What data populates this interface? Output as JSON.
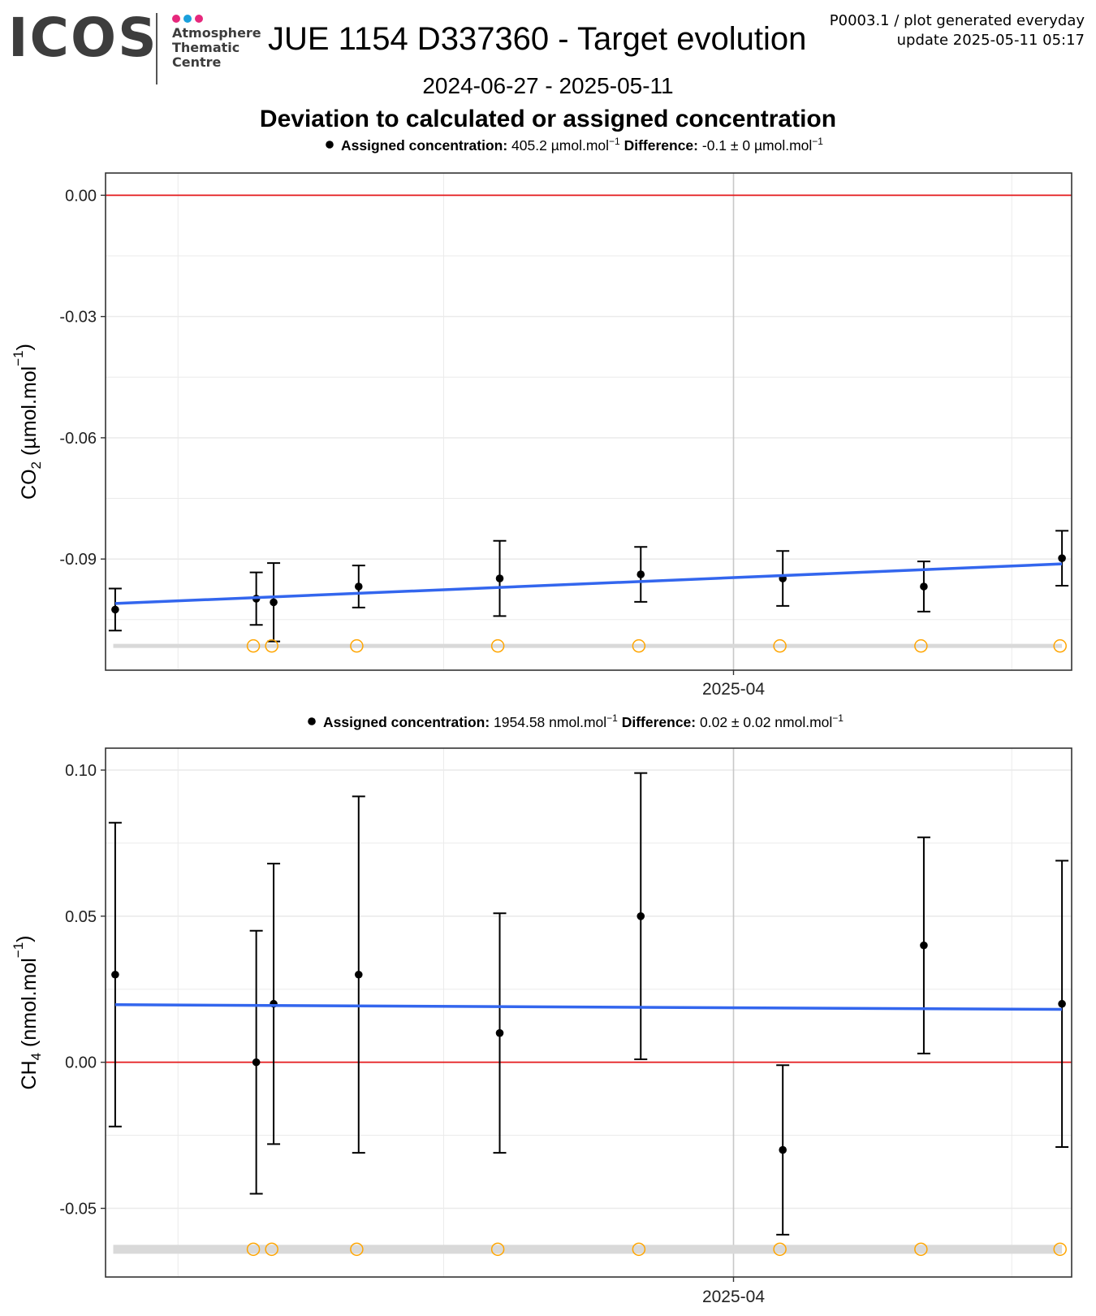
{
  "header": {
    "logo_text": "ICOS",
    "logo_sub": [
      "Atmosphere",
      "Thematic",
      "Centre"
    ],
    "logo_dot_colors": [
      "#e6287c",
      "#1aa0dc",
      "#e6287c"
    ],
    "title": "JUE 1154 D337360 - Target evolution",
    "meta_line1": "P0003.1 / plot generated everyday",
    "meta_line2": "update  2025-05-11 05:17",
    "date_range": "2024-06-27 - 2025-05-11",
    "subtitle": "Deviation to calculated or assigned concentration"
  },
  "colors": {
    "reference_line": "#e41a1c",
    "trend_line": "#3366ee",
    "points": "#000000",
    "open_circles": "#ffa500",
    "band": "#d9d9d9",
    "grid": "#ebebeb",
    "panel_border": "#333333"
  },
  "chart_data": [
    {
      "type": "scatter",
      "legend_label": "Assigned concentration:",
      "legend_value": "405.2 µmol.mol",
      "legend_diff_label": "Difference:",
      "legend_diff_value": "-0.1 ± 0 µmol.mol",
      "legend_sup": "−1",
      "ylabel_main": "CO",
      "ylabel_sub": "2",
      "ylabel_unit": " (µmol.mol",
      "ylabel_sup": "−1",
      "ylabel_close": ")",
      "y_ticks": [
        "0.00",
        "-0.03",
        "-0.06",
        "-0.09"
      ],
      "y_tick_values": [
        0.0,
        -0.03,
        -0.06,
        -0.09
      ],
      "ylim": [
        -0.1175,
        0.0055
      ],
      "x_tick_label": "2025-04",
      "x_tick_pos": 0.65,
      "reference": 0.0,
      "band_y": -0.1115,
      "points": [
        {
          "x": 0.01,
          "y": -0.1025,
          "err": 0.0052
        },
        {
          "x": 0.156,
          "y": -0.0998,
          "err": 0.0065
        },
        {
          "x": 0.174,
          "y": -0.1007,
          "err": 0.0097
        },
        {
          "x": 0.262,
          "y": -0.0968,
          "err": 0.0052
        },
        {
          "x": 0.408,
          "y": -0.0948,
          "err": 0.0093
        },
        {
          "x": 0.554,
          "y": -0.0938,
          "err": 0.0068
        },
        {
          "x": 0.701,
          "y": -0.0948,
          "err": 0.0068
        },
        {
          "x": 0.847,
          "y": -0.0968,
          "err": 0.0062
        },
        {
          "x": 0.99,
          "y": -0.0898,
          "err": 0.0068
        }
      ],
      "open_circles_x": [
        0.153,
        0.172,
        0.26,
        0.406,
        0.552,
        0.698,
        0.844,
        0.988
      ],
      "trend": [
        [
          0.01,
          -0.101
        ],
        [
          0.99,
          -0.0912
        ]
      ]
    },
    {
      "type": "scatter",
      "legend_label": "Assigned concentration:",
      "legend_value": "1954.58 nmol.mol",
      "legend_diff_label": "Difference:",
      "legend_diff_value": "0.02 ± 0.02 nmol.mol",
      "legend_sup": "−1",
      "ylabel_main": "CH",
      "ylabel_sub": "4",
      "ylabel_unit": " (nmol.mol",
      "ylabel_sup": "−1",
      "ylabel_close": ")",
      "y_ticks": [
        "0.10",
        "0.05",
        "0.00",
        "-0.05"
      ],
      "y_tick_values": [
        0.1,
        0.05,
        0.0,
        -0.05
      ],
      "ylim": [
        -0.0735,
        0.1075
      ],
      "x_tick_label": "2025-04",
      "x_tick_pos": 0.65,
      "reference": 0.0,
      "band_y": -0.064,
      "points": [
        {
          "x": 0.01,
          "y": 0.03,
          "err": 0.052
        },
        {
          "x": 0.156,
          "y": 0.0,
          "err": 0.045
        },
        {
          "x": 0.174,
          "y": 0.02,
          "err": 0.048
        },
        {
          "x": 0.262,
          "y": 0.03,
          "err": 0.061
        },
        {
          "x": 0.408,
          "y": 0.01,
          "err": 0.041
        },
        {
          "x": 0.554,
          "y": 0.05,
          "err": 0.049
        },
        {
          "x": 0.701,
          "y": -0.03,
          "err": 0.029
        },
        {
          "x": 0.847,
          "y": 0.04,
          "err": 0.037
        },
        {
          "x": 0.99,
          "y": 0.02,
          "err": 0.049
        }
      ],
      "open_circles_x": [
        0.153,
        0.172,
        0.26,
        0.406,
        0.552,
        0.698,
        0.844,
        0.988
      ],
      "trend": [
        [
          0.01,
          0.0197
        ],
        [
          0.99,
          0.0181
        ]
      ]
    }
  ]
}
